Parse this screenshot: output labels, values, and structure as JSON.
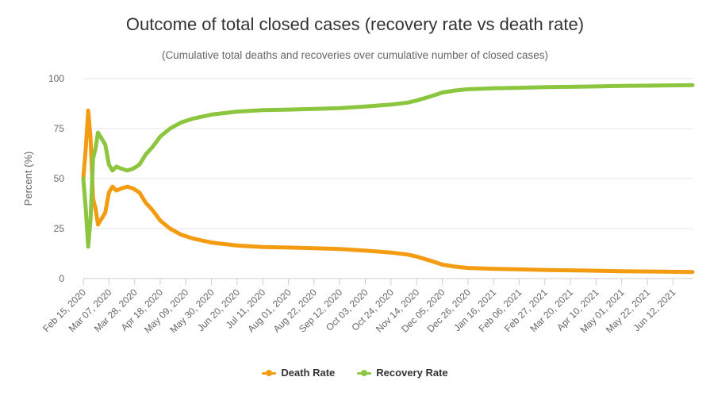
{
  "chart_data": {
    "type": "line",
    "title": "Outcome of total closed cases (recovery rate vs death rate)",
    "subtitle": "(Cumulative total deaths and recoveries over cumulative number of closed cases)",
    "ylabel": "Percent (%)",
    "ylim": [
      0,
      100
    ],
    "yticks": [
      "0",
      "25",
      "50",
      "75",
      "100"
    ],
    "x_range": [
      "2020-02-15",
      "2021-06-28"
    ],
    "x_tick_labels": [
      "Feb 15, 2020",
      "Mar 07, 2020",
      "Mar 28, 2020",
      "Apr 18, 2020",
      "May 09, 2020",
      "May 30, 2020",
      "Jun 20, 2020",
      "Jul 11, 2020",
      "Aug 01, 2020",
      "Aug 22, 2020",
      "Sep 12, 2020",
      "Oct 03, 2020",
      "Oct 24, 2020",
      "Nov 14, 2020",
      "Dec 05, 2020",
      "Dec 26, 2020",
      "Jan 16, 2021",
      "Feb 06, 2021",
      "Feb 27, 2021",
      "Mar 20, 2021",
      "Apr 10, 2021",
      "May 01, 2021",
      "May 22, 2021",
      "Jun 12, 2021"
    ],
    "legend_position": "bottom-center",
    "grid": true,
    "series": [
      {
        "name": "Death Rate",
        "color": "#f39c12",
        "points": [
          [
            "2020-02-15",
            50
          ],
          [
            "2020-02-17",
            65
          ],
          [
            "2020-02-19",
            84
          ],
          [
            "2020-02-21",
            70
          ],
          [
            "2020-02-23",
            40
          ],
          [
            "2020-02-25",
            35
          ],
          [
            "2020-02-27",
            27
          ],
          [
            "2020-03-01",
            30
          ],
          [
            "2020-03-04",
            33
          ],
          [
            "2020-03-07",
            43
          ],
          [
            "2020-03-10",
            46
          ],
          [
            "2020-03-13",
            44
          ],
          [
            "2020-03-17",
            45
          ],
          [
            "2020-03-22",
            46
          ],
          [
            "2020-03-27",
            45
          ],
          [
            "2020-04-01",
            43
          ],
          [
            "2020-04-06",
            38
          ],
          [
            "2020-04-12",
            34
          ],
          [
            "2020-04-18",
            29
          ],
          [
            "2020-04-26",
            25
          ],
          [
            "2020-05-05",
            22
          ],
          [
            "2020-05-15",
            20
          ],
          [
            "2020-05-30",
            18
          ],
          [
            "2020-06-20",
            16.5
          ],
          [
            "2020-07-11",
            15.8
          ],
          [
            "2020-08-01",
            15.5
          ],
          [
            "2020-08-22",
            15.2
          ],
          [
            "2020-09-12",
            14.8
          ],
          [
            "2020-10-03",
            14
          ],
          [
            "2020-10-24",
            13
          ],
          [
            "2020-11-07",
            12
          ],
          [
            "2020-11-14",
            11
          ],
          [
            "2020-11-25",
            9
          ],
          [
            "2020-12-05",
            7
          ],
          [
            "2020-12-15",
            6
          ],
          [
            "2020-12-26",
            5.3
          ],
          [
            "2021-01-16",
            4.9
          ],
          [
            "2021-02-06",
            4.6
          ],
          [
            "2021-03-01",
            4.3
          ],
          [
            "2021-04-01",
            4
          ],
          [
            "2021-05-01",
            3.7
          ],
          [
            "2021-06-01",
            3.5
          ],
          [
            "2021-06-28",
            3.3
          ]
        ]
      },
      {
        "name": "Recovery Rate",
        "color": "#8cc63f",
        "points": [
          [
            "2020-02-15",
            50
          ],
          [
            "2020-02-17",
            35
          ],
          [
            "2020-02-19",
            16
          ],
          [
            "2020-02-21",
            30
          ],
          [
            "2020-02-23",
            60
          ],
          [
            "2020-02-25",
            65
          ],
          [
            "2020-02-27",
            73
          ],
          [
            "2020-03-01",
            70
          ],
          [
            "2020-03-04",
            67
          ],
          [
            "2020-03-07",
            57
          ],
          [
            "2020-03-10",
            54
          ],
          [
            "2020-03-13",
            56
          ],
          [
            "2020-03-17",
            55
          ],
          [
            "2020-03-22",
            54
          ],
          [
            "2020-03-27",
            55
          ],
          [
            "2020-04-01",
            57
          ],
          [
            "2020-04-06",
            62
          ],
          [
            "2020-04-12",
            66
          ],
          [
            "2020-04-18",
            71
          ],
          [
            "2020-04-26",
            75
          ],
          [
            "2020-05-05",
            78
          ],
          [
            "2020-05-15",
            80
          ],
          [
            "2020-05-30",
            82
          ],
          [
            "2020-06-20",
            83.5
          ],
          [
            "2020-07-11",
            84.2
          ],
          [
            "2020-08-01",
            84.5
          ],
          [
            "2020-08-22",
            84.8
          ],
          [
            "2020-09-12",
            85.2
          ],
          [
            "2020-10-03",
            86
          ],
          [
            "2020-10-24",
            87
          ],
          [
            "2020-11-07",
            88
          ],
          [
            "2020-11-14",
            89
          ],
          [
            "2020-11-25",
            91
          ],
          [
            "2020-12-05",
            93
          ],
          [
            "2020-12-15",
            94
          ],
          [
            "2020-12-26",
            94.7
          ],
          [
            "2021-01-16",
            95.1
          ],
          [
            "2021-02-06",
            95.4
          ],
          [
            "2021-03-01",
            95.7
          ],
          [
            "2021-04-01",
            96
          ],
          [
            "2021-05-01",
            96.3
          ],
          [
            "2021-06-01",
            96.5
          ],
          [
            "2021-06-28",
            96.7
          ]
        ]
      }
    ]
  }
}
